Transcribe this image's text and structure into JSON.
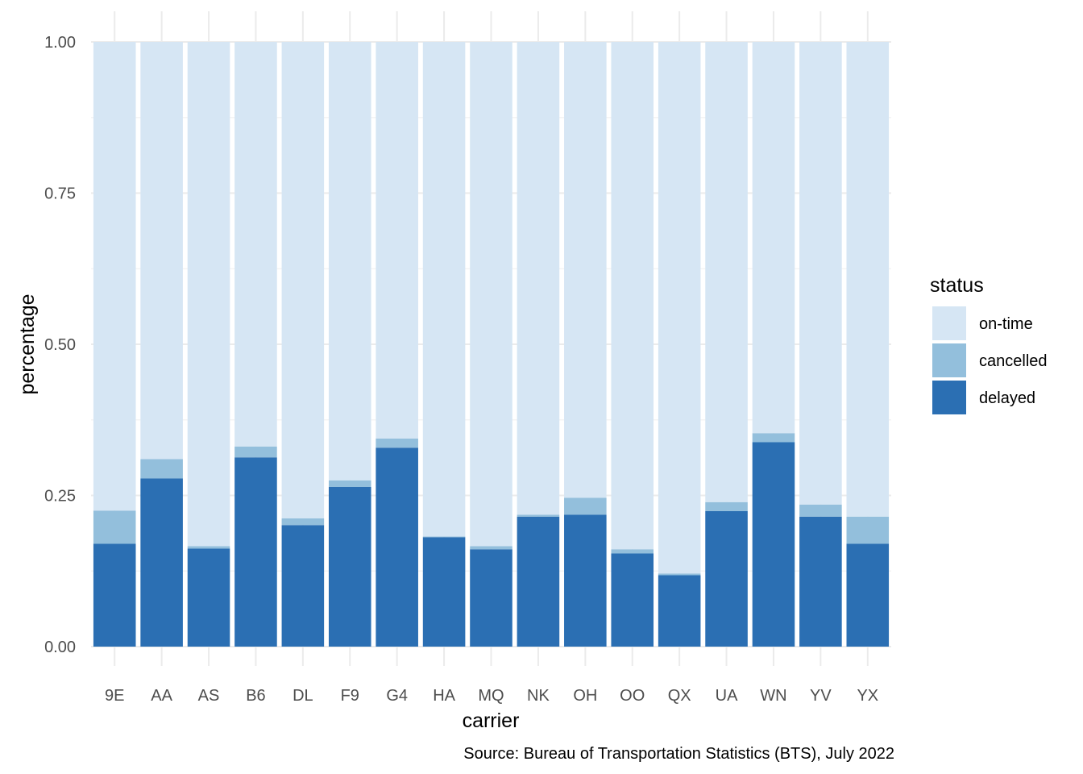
{
  "chart_data": {
    "type": "bar",
    "stacked": true,
    "categories": [
      "9E",
      "AA",
      "AS",
      "B6",
      "DL",
      "F9",
      "G4",
      "HA",
      "MQ",
      "NK",
      "OH",
      "OO",
      "QX",
      "UA",
      "WN",
      "YV",
      "YX"
    ],
    "series": [
      {
        "name": "delayed",
        "color": "#2b6fb3",
        "values": [
          0.17,
          0.278,
          0.162,
          0.313,
          0.201,
          0.264,
          0.329,
          0.181,
          0.161,
          0.215,
          0.218,
          0.154,
          0.118,
          0.224,
          0.338,
          0.215,
          0.17
        ]
      },
      {
        "name": "cancelled",
        "color": "#93bfdc",
        "values": [
          0.055,
          0.032,
          0.004,
          0.018,
          0.011,
          0.011,
          0.015,
          0.001,
          0.005,
          0.003,
          0.028,
          0.007,
          0.003,
          0.015,
          0.015,
          0.02,
          0.045
        ]
      },
      {
        "name": "on-time",
        "color": "#d6e6f4",
        "values": [
          0.775,
          0.69,
          0.834,
          0.669,
          0.788,
          0.725,
          0.656,
          0.818,
          0.834,
          0.782,
          0.754,
          0.839,
          0.879,
          0.761,
          0.647,
          0.765,
          0.785
        ]
      }
    ],
    "xlabel": "carrier",
    "ylabel": "percentage",
    "ylim": [
      0,
      1
    ],
    "yticks": [
      "0.00",
      "0.25",
      "0.50",
      "0.75",
      "1.00"
    ],
    "ytick_values": [
      0,
      0.25,
      0.5,
      0.75,
      1.0
    ],
    "legend": {
      "title": "status",
      "placement": "right",
      "entries": [
        {
          "label": "on-time",
          "color": "#d6e6f4"
        },
        {
          "label": "cancelled",
          "color": "#93bfdc"
        },
        {
          "label": "delayed",
          "color": "#2b6fb3"
        }
      ]
    },
    "caption": "Source: Bureau of Transportation Statistics (BTS), July 2022",
    "grid": true
  }
}
